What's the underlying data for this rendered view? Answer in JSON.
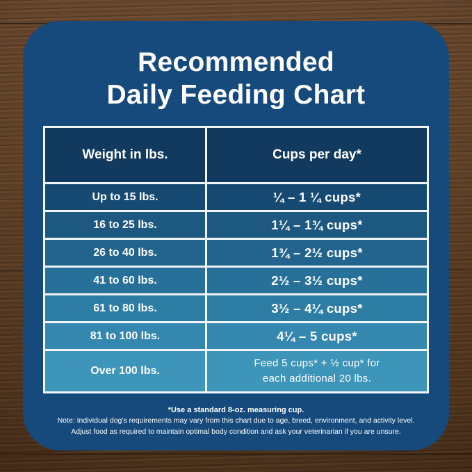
{
  "header": {
    "title_line1": "Recommended",
    "title_line2": "Daily Feeding Chart"
  },
  "chart_data": {
    "type": "table",
    "title": "Recommended Daily Feeding Chart",
    "columns": [
      "Weight in lbs.",
      "Cups per day*"
    ],
    "rows": [
      [
        "Up to 15 lbs.",
        "¼ – 1 ¼ cups*"
      ],
      [
        "16 to 25 lbs.",
        "1¼ – 1¾ cups*"
      ],
      [
        "26 to 40 lbs.",
        "1¾ – 2½ cups*"
      ],
      [
        "41 to 60 lbs.",
        "2½ – 3½ cups*"
      ],
      [
        "61 to 80 lbs.",
        "3½ – 4¼ cups*"
      ],
      [
        "81 to 100 lbs.",
        "4¼ – 5 cups*"
      ],
      [
        "Over 100 lbs.",
        "Feed 5 cups* + ½ cup* for\neach additional 20 lbs."
      ]
    ]
  },
  "footer": {
    "measuring_note": "*Use a standard 8-oz. measuring cup.",
    "note_line1": "Note: Individual dog's requirements may vary from this chart due to age, breed, environment, and activity level.",
    "note_line2": "Adjust food as required to maintain optimal body condition and ask your veterinarian if you are unsure."
  },
  "colors": {
    "card_background": "#164a7c",
    "table_border": "#f2f5f7",
    "header_row_background": "#123a5e",
    "row_backgrounds": [
      "#174a72",
      "#1d5880",
      "#22648d",
      "#277099",
      "#2d7ca4",
      "#3487ae",
      "#3d95b9"
    ],
    "text": "#ffffff"
  }
}
